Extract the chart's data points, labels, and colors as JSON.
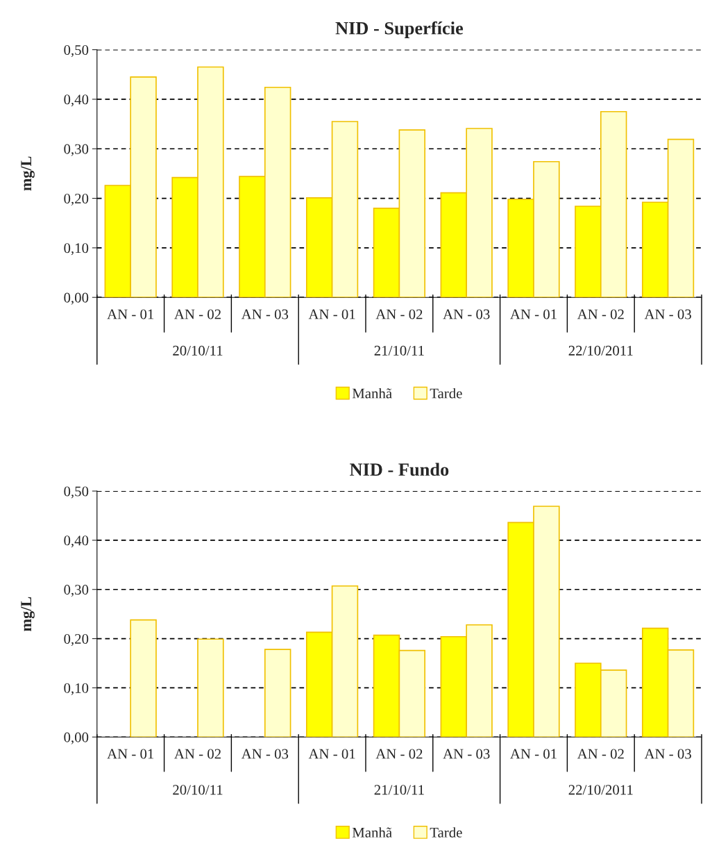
{
  "chart_data": [
    {
      "type": "bar",
      "title": "NID - Superfície",
      "ylabel": "mg/L",
      "categories": [
        "AN - 01",
        "AN - 02",
        "AN - 03",
        "AN - 01",
        "AN - 02",
        "AN - 03",
        "AN - 01",
        "AN - 02",
        "AN - 03"
      ],
      "annotations": [
        "20/10/11",
        "21/10/11",
        "22/10/2011"
      ],
      "series": [
        {
          "name": "Manhã",
          "color": "#ffff00",
          "values": [
            0.226,
            0.242,
            0.244,
            0.201,
            0.18,
            0.211,
            0.198,
            0.184,
            0.192
          ]
        },
        {
          "name": "Tarde",
          "color": "#ffffcc",
          "values": [
            0.445,
            0.465,
            0.424,
            0.355,
            0.338,
            0.341,
            0.274,
            0.375,
            0.319
          ]
        }
      ],
      "ylim": [
        0,
        0.5
      ],
      "yticks": [
        {
          "value": 0,
          "label": "0,00"
        },
        {
          "value": 0.1,
          "label": "0,10"
        },
        {
          "value": 0.2,
          "label": "0,20"
        },
        {
          "value": 0.3,
          "label": "0,30"
        },
        {
          "value": 0.4,
          "label": "0,40"
        },
        {
          "value": 0.5,
          "label": "0,50"
        }
      ],
      "grid": "y",
      "line_style": "dashed",
      "legend": "bottom"
    },
    {
      "type": "bar",
      "title": "NID - Fundo",
      "ylabel": "mg/L",
      "categories": [
        "AN - 01",
        "AN - 02",
        "AN - 03",
        "AN - 01",
        "AN - 02",
        "AN - 03",
        "AN - 01",
        "AN - 02",
        "AN - 03"
      ],
      "annotations": [
        "20/10/11",
        "21/10/11",
        "22/10/2011"
      ],
      "series": [
        {
          "name": "Manhã",
          "color": "#ffff00",
          "values": [
            null,
            null,
            null,
            0.213,
            0.207,
            0.204,
            0.436,
            0.15,
            0.221
          ]
        },
        {
          "name": "Tarde",
          "color": "#ffffcc",
          "values": [
            0.238,
            0.199,
            0.178,
            0.307,
            0.176,
            0.228,
            0.469,
            0.136,
            0.177
          ]
        }
      ],
      "ylim": [
        0,
        0.5
      ],
      "yticks": [
        {
          "value": 0,
          "label": "0,00"
        },
        {
          "value": 0.1,
          "label": "0,10"
        },
        {
          "value": 0.2,
          "label": "0,20"
        },
        {
          "value": 0.3,
          "label": "0,30"
        },
        {
          "value": 0.4,
          "label": "0,40"
        },
        {
          "value": 0.5,
          "label": "0,50"
        }
      ],
      "grid": "y",
      "line_style": "dashed",
      "legend": "bottom"
    }
  ]
}
